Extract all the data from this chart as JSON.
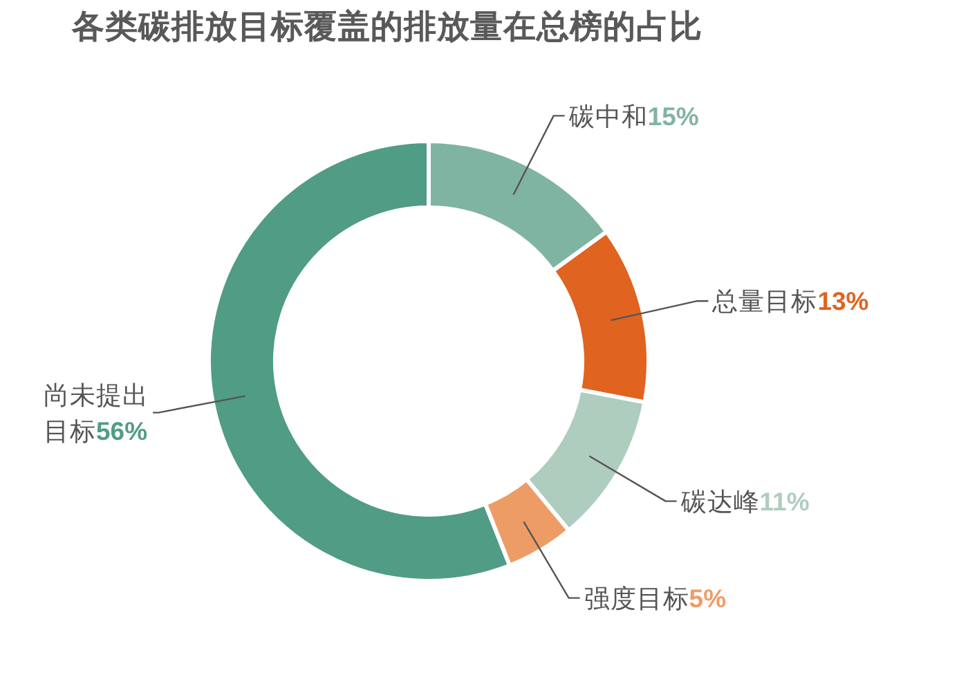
{
  "chart_data": {
    "type": "donut",
    "title": "各类碳排放目标覆盖的排放量在总榜的占比",
    "categories": [
      "碳中和",
      "总量目标",
      "碳达峰",
      "强度目标",
      "尚未提出目标"
    ],
    "values": [
      15,
      13,
      11,
      5,
      56
    ],
    "value_labels": [
      "15%",
      "13%",
      "11%",
      "5%",
      "56%"
    ],
    "colors": [
      "#80b4a2",
      "#e06320",
      "#aecdbf",
      "#ee9c66",
      "#519c85"
    ]
  }
}
